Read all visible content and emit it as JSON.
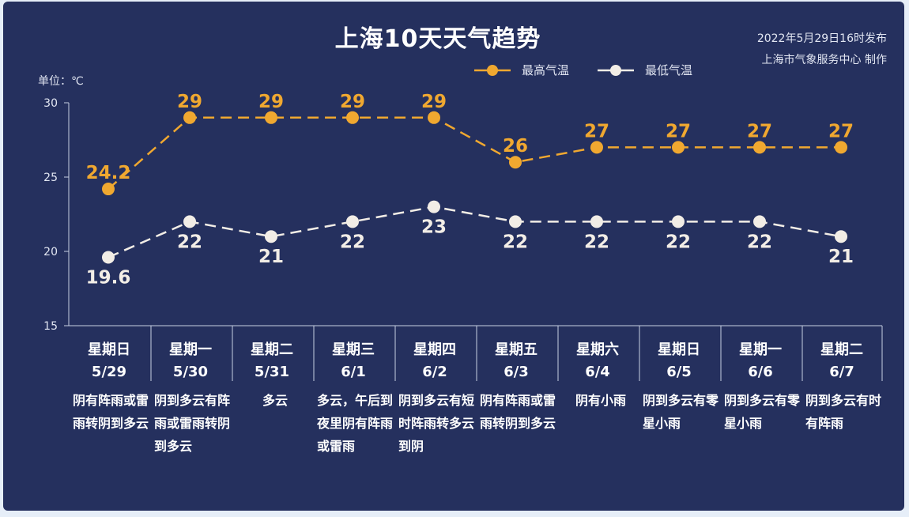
{
  "title": "上海10天天气趋势",
  "meta": {
    "issued": "2022年5月29日16时发布",
    "producer": "上海市气象服务中心 制作"
  },
  "unit_label": "单位：℃",
  "colors": {
    "background": "#25305e",
    "high": "#f0a830",
    "low": "#f2ede6",
    "axis": "#c8cfe3",
    "text": "#ffffff"
  },
  "legend": {
    "high": "最高气温",
    "low": "最低气温"
  },
  "chart_data": {
    "type": "line",
    "categories": [
      "5/29",
      "5/30",
      "5/31",
      "6/1",
      "6/2",
      "6/3",
      "6/4",
      "6/5",
      "6/6",
      "6/7"
    ],
    "weekdays": [
      "星期日",
      "星期一",
      "星期二",
      "星期三",
      "星期四",
      "星期五",
      "星期六",
      "星期日",
      "星期一",
      "星期二"
    ],
    "weather": [
      "阴有阵雨或雷雨转阴到多云",
      "阴到多云有阵雨或雷雨转阴到多云",
      "多云",
      "多云，午后到夜里阴有阵雨或雷雨",
      "阴到多云有短时阵雨转多云到阴",
      "阴有阵雨或雷雨转阴到多云",
      "阴有小雨",
      "阴到多云有零星小雨",
      "阴到多云有零星小雨",
      "阴到多云有时有阵雨"
    ],
    "series": [
      {
        "name": "最高气温",
        "values": [
          24.2,
          29,
          29,
          29,
          29,
          26,
          27,
          27,
          27,
          27
        ]
      },
      {
        "name": "最低气温",
        "values": [
          19.6,
          22,
          21,
          22,
          23,
          22,
          22,
          22,
          22,
          21
        ]
      }
    ],
    "data_labels": {
      "high": [
        "24.2",
        "29",
        "29",
        "29",
        "29",
        "26",
        "27",
        "27",
        "27",
        "27"
      ],
      "low": [
        "19.6",
        "22",
        "21",
        "22",
        "23",
        "22",
        "22",
        "22",
        "22",
        "21"
      ]
    },
    "yticks": [
      "15",
      "20",
      "25",
      "30"
    ],
    "ylim": [
      15,
      30
    ],
    "grid": false,
    "legend_position": "top-right"
  }
}
